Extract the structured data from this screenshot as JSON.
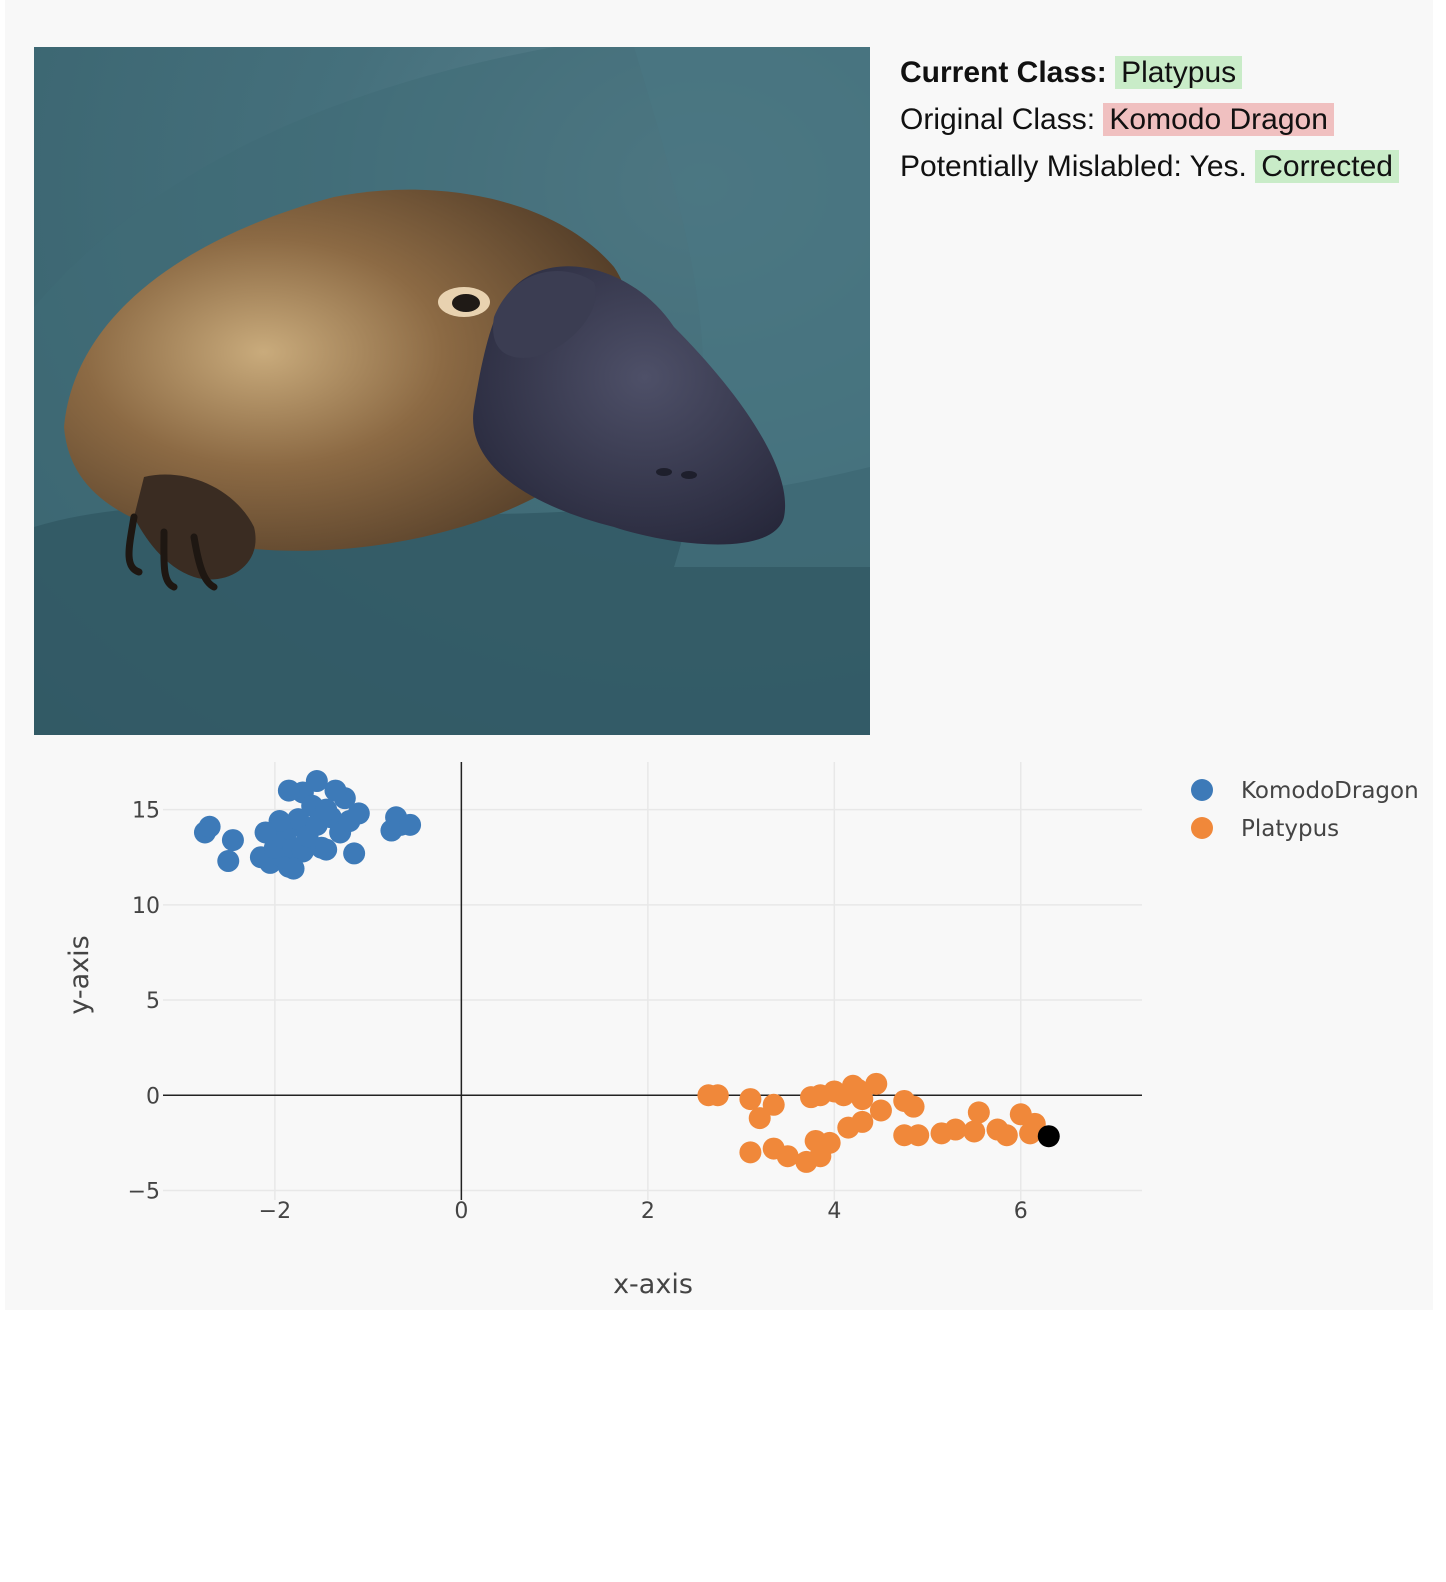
{
  "info": {
    "current_label": "Current Class:",
    "current_value": "Platypus",
    "original_label": "Original Class:",
    "original_value": "Komodo Dragon",
    "mislabeled_label": "Potentially Mislabled: Yes.",
    "mislabeled_status": "Corrected"
  },
  "colors": {
    "current_tag": "#c9ecc8",
    "original_tag": "#f0c0c0",
    "corrected_tag": "#c9ecc8"
  },
  "chart_data": {
    "type": "scatter",
    "xlabel": "x-axis",
    "ylabel": "y-axis",
    "xlim": [
      -3.2,
      7.3
    ],
    "ylim": [
      -5.5,
      17.5
    ],
    "xticks": [
      -2,
      0,
      2,
      4,
      6
    ],
    "yticks": [
      -5,
      0,
      5,
      10,
      15
    ],
    "xtick_labels": [
      "−2",
      "0",
      "2",
      "4",
      "6"
    ],
    "ytick_labels": [
      "−5",
      "0",
      "5",
      "10",
      "15"
    ],
    "grid": true,
    "legend_position": "top-right",
    "series": [
      {
        "name": "KomodoDragon",
        "color": "#3d7ab8",
        "points": [
          [
            -2.75,
            13.8
          ],
          [
            -2.7,
            14.1
          ],
          [
            -2.45,
            13.4
          ],
          [
            -2.5,
            12.3
          ],
          [
            -2.15,
            12.5
          ],
          [
            -2.05,
            12.2
          ],
          [
            -1.95,
            12.6
          ],
          [
            -1.85,
            12.0
          ],
          [
            -2.0,
            13.0
          ],
          [
            -1.9,
            13.5
          ],
          [
            -1.8,
            13.0
          ],
          [
            -1.7,
            12.8
          ],
          [
            -1.85,
            14.0
          ],
          [
            -1.75,
            14.5
          ],
          [
            -1.65,
            13.6
          ],
          [
            -1.55,
            14.2
          ],
          [
            -1.5,
            13.0
          ],
          [
            -1.4,
            14.6
          ],
          [
            -1.3,
            13.8
          ],
          [
            -1.2,
            14.4
          ],
          [
            -1.1,
            14.8
          ],
          [
            -1.25,
            15.6
          ],
          [
            -1.35,
            16.0
          ],
          [
            -1.55,
            16.5
          ],
          [
            -1.7,
            15.9
          ],
          [
            -1.85,
            16.0
          ],
          [
            -1.6,
            15.2
          ],
          [
            -1.45,
            15.0
          ],
          [
            -1.15,
            12.7
          ],
          [
            -1.45,
            12.9
          ],
          [
            -1.8,
            11.9
          ],
          [
            -0.75,
            13.9
          ],
          [
            -0.7,
            14.6
          ],
          [
            -0.65,
            14.2
          ],
          [
            -0.55,
            14.2
          ],
          [
            -1.95,
            14.4
          ],
          [
            -2.1,
            13.8
          ]
        ]
      },
      {
        "name": "Platypus",
        "color": "#f0883a",
        "points": [
          [
            2.65,
            0.0
          ],
          [
            2.75,
            0.0
          ],
          [
            3.1,
            -0.2
          ],
          [
            3.2,
            -1.2
          ],
          [
            3.35,
            -0.5
          ],
          [
            3.1,
            -3.0
          ],
          [
            3.35,
            -2.8
          ],
          [
            3.5,
            -3.2
          ],
          [
            3.7,
            -3.5
          ],
          [
            3.85,
            -3.2
          ],
          [
            3.8,
            -2.4
          ],
          [
            3.95,
            -2.5
          ],
          [
            3.75,
            -0.1
          ],
          [
            3.85,
            0.0
          ],
          [
            4.0,
            0.2
          ],
          [
            4.1,
            0.0
          ],
          [
            4.2,
            0.5
          ],
          [
            4.25,
            0.3
          ],
          [
            4.3,
            -0.2
          ],
          [
            4.45,
            0.6
          ],
          [
            4.15,
            -1.7
          ],
          [
            4.3,
            -1.4
          ],
          [
            4.5,
            -0.8
          ],
          [
            4.75,
            -0.3
          ],
          [
            4.85,
            -0.6
          ],
          [
            4.75,
            -2.1
          ],
          [
            4.9,
            -2.1
          ],
          [
            5.15,
            -2.0
          ],
          [
            5.3,
            -1.8
          ],
          [
            5.5,
            -1.9
          ],
          [
            5.55,
            -0.9
          ],
          [
            5.75,
            -1.8
          ],
          [
            5.85,
            -2.1
          ],
          [
            6.0,
            -1.0
          ],
          [
            6.1,
            -2.0
          ],
          [
            6.15,
            -1.5
          ]
        ]
      },
      {
        "name": "",
        "color": "#000000",
        "points": [
          [
            6.3,
            -2.15
          ]
        ]
      }
    ]
  }
}
